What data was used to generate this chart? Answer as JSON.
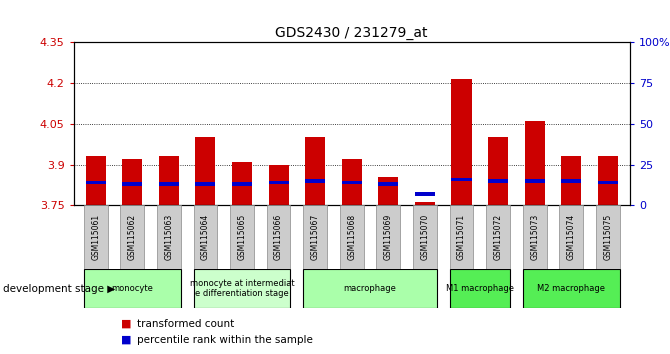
{
  "title": "GDS2430 / 231279_at",
  "samples": [
    "GSM115061",
    "GSM115062",
    "GSM115063",
    "GSM115064",
    "GSM115065",
    "GSM115066",
    "GSM115067",
    "GSM115068",
    "GSM115069",
    "GSM115070",
    "GSM115071",
    "GSM115072",
    "GSM115073",
    "GSM115074",
    "GSM115075"
  ],
  "red_values": [
    3.93,
    3.92,
    3.93,
    4.0,
    3.91,
    3.9,
    4.0,
    3.92,
    3.855,
    3.762,
    4.215,
    4.0,
    4.06,
    3.93,
    3.93
  ],
  "blue_percentile": [
    14,
    13,
    13,
    13,
    13,
    14,
    15,
    14,
    13,
    7,
    16,
    15,
    15,
    15,
    14
  ],
  "ymin": 3.75,
  "ymax": 4.35,
  "yticks": [
    3.75,
    3.9,
    4.05,
    4.2,
    4.35
  ],
  "ytick_labels": [
    "3.75",
    "3.9",
    "4.05",
    "4.2",
    "4.35"
  ],
  "right_yticks": [
    0,
    25,
    50,
    75,
    100
  ],
  "right_ytick_labels": [
    "0",
    "25",
    "50",
    "75",
    "100%"
  ],
  "grid_lines": [
    3.9,
    4.05,
    4.2
  ],
  "stage_groups": [
    {
      "label": "monocyte",
      "start": 0,
      "end": 3,
      "color": "#aaffaa"
    },
    {
      "label": "monocyte at intermediat\ne differentiation stage",
      "start": 3,
      "end": 6,
      "color": "#ccffcc"
    },
    {
      "label": "macrophage",
      "start": 6,
      "end": 10,
      "color": "#aaffaa"
    },
    {
      "label": "M1 macrophage",
      "start": 10,
      "end": 12,
      "color": "#55ee55"
    },
    {
      "label": "M2 macrophage",
      "start": 12,
      "end": 15,
      "color": "#55ee55"
    }
  ],
  "bar_color_red": "#cc0000",
  "bar_color_blue": "#0000cc",
  "left_label_color": "#cc0000",
  "right_label_color": "#0000cc",
  "legend_red": "transformed count",
  "legend_blue": "percentile rank within the sample",
  "dev_stage_label": "development stage",
  "bar_width": 0.55,
  "bg_color": "#ffffff",
  "plot_bg_color": "#ffffff",
  "tick_label_bg": "#cccccc"
}
